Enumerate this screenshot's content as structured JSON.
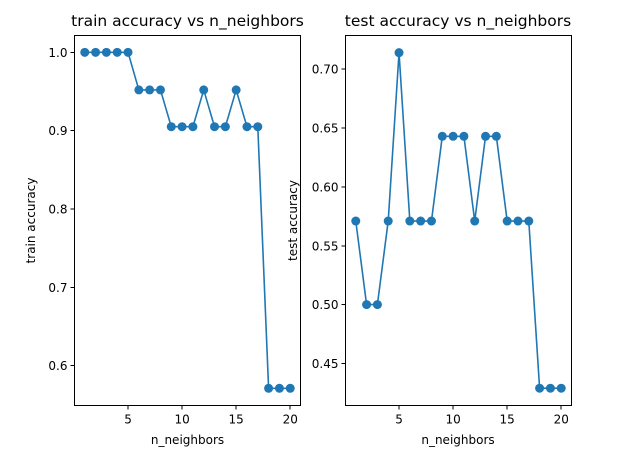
{
  "chart_data": [
    {
      "type": "line",
      "title": "train accuracy vs n_neighbors",
      "xlabel": "n_neighbors",
      "ylabel": "train accuracy",
      "xlim": [
        0.05,
        20.95
      ],
      "ylim": [
        0.549,
        1.0215
      ],
      "xticks": [
        5,
        10,
        15,
        20
      ],
      "yticks": [
        0.6,
        0.7,
        0.8,
        0.9,
        1.0
      ],
      "ytick_labels": [
        "0.6",
        "0.7",
        "0.8",
        "0.9",
        "1.0"
      ],
      "grid": false,
      "marker": "circle",
      "color": "#1f77b4",
      "series": [
        {
          "x": [
            1,
            2,
            3,
            4,
            5,
            6,
            7,
            8,
            9,
            10,
            11,
            12,
            13,
            14,
            15,
            16,
            17,
            18,
            19,
            20
          ],
          "values": [
            1.0,
            1.0,
            1.0,
            1.0,
            1.0,
            0.952,
            0.952,
            0.952,
            0.905,
            0.905,
            0.905,
            0.952,
            0.905,
            0.905,
            0.952,
            0.905,
            0.905,
            0.571,
            0.571,
            0.571
          ]
        }
      ]
    },
    {
      "type": "line",
      "title": "test accuracy vs n_neighbors",
      "xlabel": "n_neighbors",
      "ylabel": "test accuracy",
      "xlim": [
        0.05,
        20.95
      ],
      "ylim": [
        0.4143,
        0.7286
      ],
      "xticks": [
        5,
        10,
        15,
        20
      ],
      "yticks": [
        0.45,
        0.5,
        0.55,
        0.6,
        0.65,
        0.7
      ],
      "ytick_labels": [
        "0.45",
        "0.50",
        "0.55",
        "0.60",
        "0.65",
        "0.70"
      ],
      "grid": false,
      "marker": "circle",
      "color": "#1f77b4",
      "series": [
        {
          "x": [
            1,
            2,
            3,
            4,
            5,
            6,
            7,
            8,
            9,
            10,
            11,
            12,
            13,
            14,
            15,
            16,
            17,
            18,
            19,
            20
          ],
          "values": [
            0.571,
            0.5,
            0.5,
            0.571,
            0.714,
            0.571,
            0.571,
            0.571,
            0.643,
            0.643,
            0.643,
            0.571,
            0.643,
            0.643,
            0.571,
            0.571,
            0.571,
            0.429,
            0.429,
            0.429
          ]
        }
      ]
    }
  ]
}
